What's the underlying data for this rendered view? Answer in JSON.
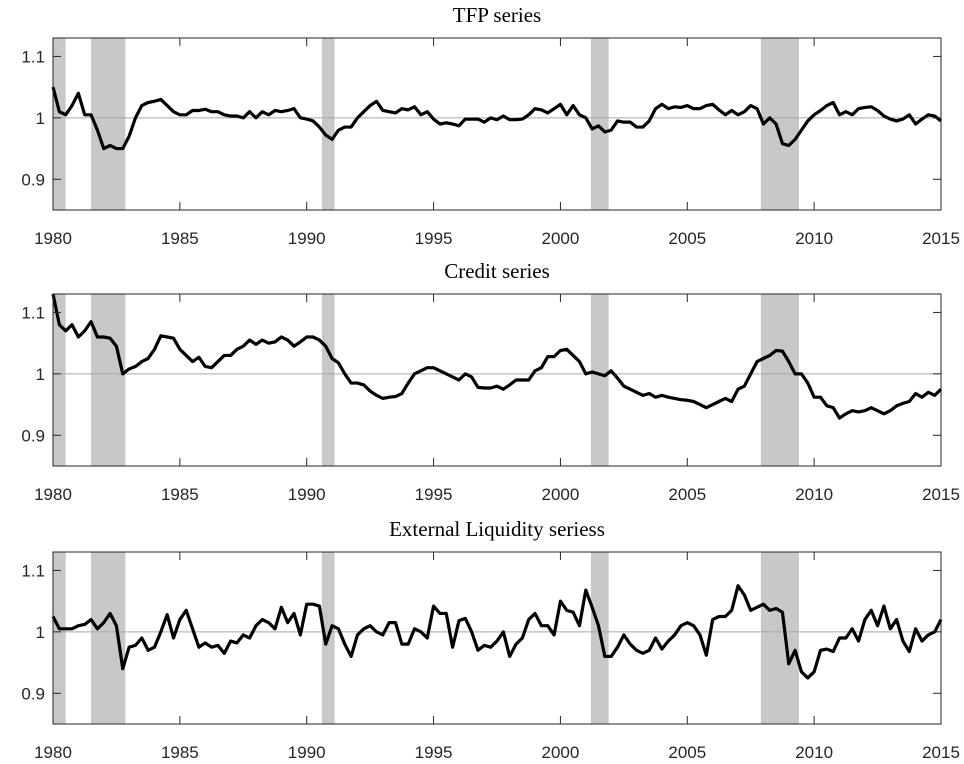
{
  "chart_data": [
    {
      "type": "line",
      "title": "TFP series",
      "color": "#000000",
      "x": [
        1980,
        1980.25,
        1980.5,
        1980.75,
        1981,
        1981.25,
        1981.5,
        1981.75,
        1982,
        1982.25,
        1982.5,
        1982.75,
        1983,
        1983.25,
        1983.5,
        1983.75,
        1984,
        1984.25,
        1984.5,
        1984.75,
        1985,
        1985.25,
        1985.5,
        1985.75,
        1986,
        1986.25,
        1986.5,
        1986.75,
        1987,
        1987.25,
        1987.5,
        1987.75,
        1988,
        1988.25,
        1988.5,
        1988.75,
        1989,
        1989.25,
        1989.5,
        1989.75,
        1990,
        1990.25,
        1990.5,
        1990.75,
        1991,
        1991.25,
        1991.5,
        1991.75,
        1992,
        1992.25,
        1992.5,
        1992.75,
        1993,
        1993.25,
        1993.5,
        1993.75,
        1994,
        1994.25,
        1994.5,
        1994.75,
        1995,
        1995.25,
        1995.5,
        1995.75,
        1996,
        1996.25,
        1996.5,
        1996.75,
        1997,
        1997.25,
        1997.5,
        1997.75,
        1998,
        1998.25,
        1998.5,
        1998.75,
        1999,
        1999.25,
        1999.5,
        1999.75,
        2000,
        2000.25,
        2000.5,
        2000.75,
        2001,
        2001.25,
        2001.5,
        2001.75,
        2002,
        2002.25,
        2002.5,
        2002.75,
        2003,
        2003.25,
        2003.5,
        2003.75,
        2004,
        2004.25,
        2004.5,
        2004.75,
        2005,
        2005.25,
        2005.5,
        2005.75,
        2006,
        2006.25,
        2006.5,
        2006.75,
        2007,
        2007.25,
        2007.5,
        2007.75,
        2008,
        2008.25,
        2008.5,
        2008.75,
        2009,
        2009.25,
        2009.5,
        2009.75,
        2010,
        2010.25,
        2010.5,
        2010.75,
        2011,
        2011.25,
        2011.5,
        2011.75,
        2012,
        2012.25,
        2012.5,
        2012.75,
        2013,
        2013.25,
        2013.5,
        2013.75,
        2014,
        2014.25,
        2014.5,
        2014.75,
        2015
      ],
      "values": [
        1.05,
        1.01,
        1.005,
        1.02,
        1.04,
        1.005,
        1.005,
        0.98,
        0.95,
        0.955,
        0.95,
        0.95,
        0.97,
        1.0,
        1.02,
        1.025,
        1.027,
        1.03,
        1.02,
        1.01,
        1.005,
        1.005,
        1.012,
        1.012,
        1.014,
        1.01,
        1.01,
        1.005,
        1.003,
        1.003,
        1.0,
        1.01,
        1.0,
        1.01,
        1.005,
        1.012,
        1.01,
        1.012,
        1.015,
        1.0,
        0.998,
        0.995,
        0.985,
        0.972,
        0.965,
        0.98,
        0.985,
        0.985,
        1.0,
        1.01,
        1.02,
        1.027,
        1.012,
        1.01,
        1.008,
        1.015,
        1.013,
        1.018,
        1.005,
        1.01,
        0.998,
        0.99,
        0.992,
        0.99,
        0.987,
        0.998,
        0.998,
        0.998,
        0.993,
        1.0,
        0.997,
        1.003,
        0.997,
        0.997,
        0.998,
        1.005,
        1.015,
        1.013,
        1.008,
        1.015,
        1.022,
        1.005,
        1.02,
        1.005,
        1.0,
        0.982,
        0.987,
        0.977,
        0.98,
        0.995,
        0.993,
        0.993,
        0.985,
        0.985,
        0.995,
        1.015,
        1.022,
        1.015,
        1.018,
        1.017,
        1.02,
        1.015,
        1.015,
        1.02,
        1.022,
        1.013,
        1.005,
        1.012,
        1.005,
        1.01,
        1.02,
        1.015,
        0.99,
        1.0,
        0.99,
        0.958,
        0.955,
        0.965,
        0.98,
        0.995,
        1.005,
        1.012,
        1.02,
        1.025,
        1.005,
        1.01,
        1.005,
        1.015,
        1.017,
        1.018,
        1.012,
        1.003,
        0.998,
        0.995,
        0.998,
        1.005,
        0.99,
        0.998,
        1.005,
        1.003,
        0.995
      ],
      "xlim": [
        1980,
        2015
      ],
      "ylim": [
        0.85,
        1.13
      ],
      "xticks": [
        1980,
        1985,
        1990,
        1995,
        2000,
        2005,
        2010,
        2015
      ],
      "yticks": [
        0.9,
        1,
        1.1
      ],
      "hline": 1,
      "recessions": [
        [
          1980,
          1980.5
        ],
        [
          1981.5,
          1982.85
        ],
        [
          1990.6,
          1991.1
        ],
        [
          2001.2,
          2001.9
        ],
        [
          2007.9,
          2009.4
        ]
      ]
    },
    {
      "type": "line",
      "title": "Credit series",
      "color": "#000000",
      "x": [
        1980,
        1980.25,
        1980.5,
        1980.75,
        1981,
        1981.25,
        1981.5,
        1981.75,
        1982,
        1982.25,
        1982.5,
        1982.75,
        1983,
        1983.25,
        1983.5,
        1983.75,
        1984,
        1984.25,
        1984.5,
        1984.75,
        1985,
        1985.25,
        1985.5,
        1985.75,
        1986,
        1986.25,
        1986.5,
        1986.75,
        1987,
        1987.25,
        1987.5,
        1987.75,
        1988,
        1988.25,
        1988.5,
        1988.75,
        1989,
        1989.25,
        1989.5,
        1989.75,
        1990,
        1990.25,
        1990.5,
        1990.75,
        1991,
        1991.25,
        1991.5,
        1991.75,
        1992,
        1992.25,
        1992.5,
        1992.75,
        1993,
        1993.25,
        1993.5,
        1993.75,
        1994,
        1994.25,
        1994.5,
        1994.75,
        1995,
        1995.25,
        1995.5,
        1995.75,
        1996,
        1996.25,
        1996.5,
        1996.75,
        1997,
        1997.25,
        1997.5,
        1997.75,
        1998,
        1998.25,
        1998.5,
        1998.75,
        1999,
        1999.25,
        1999.5,
        1999.75,
        2000,
        2000.25,
        2000.5,
        2000.75,
        2001,
        2001.25,
        2001.5,
        2001.75,
        2002,
        2002.25,
        2002.5,
        2002.75,
        2003,
        2003.25,
        2003.5,
        2003.75,
        2004,
        2004.25,
        2004.5,
        2004.75,
        2005,
        2005.25,
        2005.5,
        2005.75,
        2006,
        2006.25,
        2006.5,
        2006.75,
        2007,
        2007.25,
        2007.5,
        2007.75,
        2008,
        2008.25,
        2008.5,
        2008.75,
        2009,
        2009.25,
        2009.5,
        2009.75,
        2010,
        2010.25,
        2010.5,
        2010.75,
        2011,
        2011.25,
        2011.5,
        2011.75,
        2012,
        2012.25,
        2012.5,
        2012.75,
        2013,
        2013.25,
        2013.5,
        2013.75,
        2014,
        2014.25,
        2014.5,
        2014.75,
        2015
      ],
      "values": [
        1.13,
        1.08,
        1.07,
        1.08,
        1.06,
        1.07,
        1.085,
        1.06,
        1.06,
        1.058,
        1.045,
        1.0,
        1.008,
        1.012,
        1.02,
        1.025,
        1.04,
        1.062,
        1.06,
        1.058,
        1.04,
        1.03,
        1.02,
        1.027,
        1.012,
        1.01,
        1.02,
        1.03,
        1.03,
        1.04,
        1.045,
        1.055,
        1.048,
        1.055,
        1.05,
        1.052,
        1.06,
        1.055,
        1.045,
        1.052,
        1.06,
        1.06,
        1.055,
        1.045,
        1.025,
        1.018,
        1.0,
        0.985,
        0.985,
        0.982,
        0.972,
        0.965,
        0.96,
        0.962,
        0.963,
        0.968,
        0.985,
        1.0,
        1.005,
        1.01,
        1.01,
        1.005,
        1.0,
        0.995,
        0.99,
        1.0,
        0.995,
        0.978,
        0.977,
        0.977,
        0.98,
        0.975,
        0.982,
        0.99,
        0.99,
        0.99,
        1.005,
        1.01,
        1.028,
        1.028,
        1.038,
        1.04,
        1.03,
        1.02,
        1.0,
        1.003,
        1.0,
        0.997,
        1.005,
        0.993,
        0.98,
        0.975,
        0.97,
        0.965,
        0.968,
        0.962,
        0.965,
        0.962,
        0.96,
        0.958,
        0.957,
        0.955,
        0.95,
        0.945,
        0.95,
        0.955,
        0.96,
        0.955,
        0.975,
        0.98,
        1.0,
        1.02,
        1.025,
        1.03,
        1.038,
        1.037,
        1.02,
        1.0,
        1.0,
        0.985,
        0.962,
        0.962,
        0.948,
        0.945,
        0.928,
        0.935,
        0.94,
        0.938,
        0.94,
        0.945,
        0.94,
        0.935,
        0.94,
        0.948,
        0.952,
        0.955,
        0.968,
        0.962,
        0.97,
        0.965,
        0.975
      ],
      "xlim": [
        1980,
        2015
      ],
      "ylim": [
        0.85,
        1.13
      ],
      "xticks": [
        1980,
        1985,
        1990,
        1995,
        2000,
        2005,
        2010,
        2015
      ],
      "yticks": [
        0.9,
        1,
        1.1
      ],
      "hline": 1,
      "recessions": [
        [
          1980,
          1980.5
        ],
        [
          1981.5,
          1982.85
        ],
        [
          1990.6,
          1991.1
        ],
        [
          2001.2,
          2001.9
        ],
        [
          2007.9,
          2009.4
        ]
      ]
    },
    {
      "type": "line",
      "title": "External Liquidity seriess",
      "color": "#000000",
      "x": [
        1980,
        1980.25,
        1980.5,
        1980.75,
        1981,
        1981.25,
        1981.5,
        1981.75,
        1982,
        1982.25,
        1982.5,
        1982.75,
        1983,
        1983.25,
        1983.5,
        1983.75,
        1984,
        1984.25,
        1984.5,
        1984.75,
        1985,
        1985.25,
        1985.5,
        1985.75,
        1986,
        1986.25,
        1986.5,
        1986.75,
        1987,
        1987.25,
        1987.5,
        1987.75,
        1988,
        1988.25,
        1988.5,
        1988.75,
        1989,
        1989.25,
        1989.5,
        1989.75,
        1990,
        1990.25,
        1990.5,
        1990.75,
        1991,
        1991.25,
        1991.5,
        1991.75,
        1992,
        1992.25,
        1992.5,
        1992.75,
        1993,
        1993.25,
        1993.5,
        1993.75,
        1994,
        1994.25,
        1994.5,
        1994.75,
        1995,
        1995.25,
        1995.5,
        1995.75,
        1996,
        1996.25,
        1996.5,
        1996.75,
        1997,
        1997.25,
        1997.5,
        1997.75,
        1998,
        1998.25,
        1998.5,
        1998.75,
        1999,
        1999.25,
        1999.5,
        1999.75,
        2000,
        2000.25,
        2000.5,
        2000.75,
        2001,
        2001.25,
        2001.5,
        2001.75,
        2002,
        2002.25,
        2002.5,
        2002.75,
        2003,
        2003.25,
        2003.5,
        2003.75,
        2004,
        2004.25,
        2004.5,
        2004.75,
        2005,
        2005.25,
        2005.5,
        2005.75,
        2006,
        2006.25,
        2006.5,
        2006.75,
        2007,
        2007.25,
        2007.5,
        2007.75,
        2008,
        2008.25,
        2008.5,
        2008.75,
        2009,
        2009.25,
        2009.5,
        2009.75,
        2010,
        2010.25,
        2010.5,
        2010.75,
        2011,
        2011.25,
        2011.5,
        2011.75,
        2012,
        2012.25,
        2012.5,
        2012.75,
        2013,
        2013.25,
        2013.5,
        2013.75,
        2014,
        2014.25,
        2014.5,
        2014.75,
        2015
      ],
      "values": [
        1.025,
        1.005,
        1.005,
        1.005,
        1.01,
        1.012,
        1.02,
        1.005,
        1.015,
        1.03,
        1.01,
        0.94,
        0.975,
        0.978,
        0.99,
        0.97,
        0.975,
        1.0,
        1.028,
        0.99,
        1.02,
        1.035,
        1.005,
        0.975,
        0.982,
        0.975,
        0.978,
        0.965,
        0.985,
        0.982,
        0.995,
        0.99,
        1.01,
        1.02,
        1.015,
        1.005,
        1.04,
        1.015,
        1.03,
        0.995,
        1.045,
        1.045,
        1.042,
        0.98,
        1.01,
        1.005,
        0.98,
        0.96,
        0.995,
        1.005,
        1.01,
        1.0,
        0.995,
        1.015,
        1.015,
        0.98,
        0.98,
        1.005,
        1.0,
        0.99,
        1.042,
        1.03,
        1.03,
        0.975,
        1.018,
        1.022,
        1.0,
        0.97,
        0.978,
        0.975,
        0.985,
        1.0,
        0.96,
        0.98,
        0.99,
        1.02,
        1.03,
        1.01,
        1.01,
        0.995,
        1.05,
        1.035,
        1.032,
        1.01,
        1.068,
        1.04,
        1.01,
        0.96,
        0.96,
        0.975,
        0.995,
        0.98,
        0.97,
        0.965,
        0.97,
        0.99,
        0.972,
        0.985,
        0.995,
        1.01,
        1.015,
        1.01,
        0.995,
        0.962,
        1.02,
        1.025,
        1.025,
        1.035,
        1.075,
        1.06,
        1.035,
        1.04,
        1.045,
        1.035,
        1.038,
        1.032,
        0.948,
        0.97,
        0.935,
        0.925,
        0.935,
        0.97,
        0.972,
        0.968,
        0.99,
        0.99,
        1.005,
        0.985,
        1.02,
        1.035,
        1.01,
        1.042,
        1.005,
        1.02,
        0.985,
        0.968,
        1.005,
        0.985,
        0.995,
        1.0,
        1.02
      ],
      "xlim": [
        1980,
        2015
      ],
      "ylim": [
        0.85,
        1.13
      ],
      "xticks": [
        1980,
        1985,
        1990,
        1995,
        2000,
        2005,
        2010,
        2015
      ],
      "yticks": [
        0.9,
        1,
        1.1
      ],
      "hline": 1,
      "recessions": [
        [
          1980,
          1980.5
        ],
        [
          1981.5,
          1982.85
        ],
        [
          1990.6,
          1991.1
        ],
        [
          2001.2,
          2001.9
        ],
        [
          2007.9,
          2009.4
        ]
      ]
    }
  ]
}
